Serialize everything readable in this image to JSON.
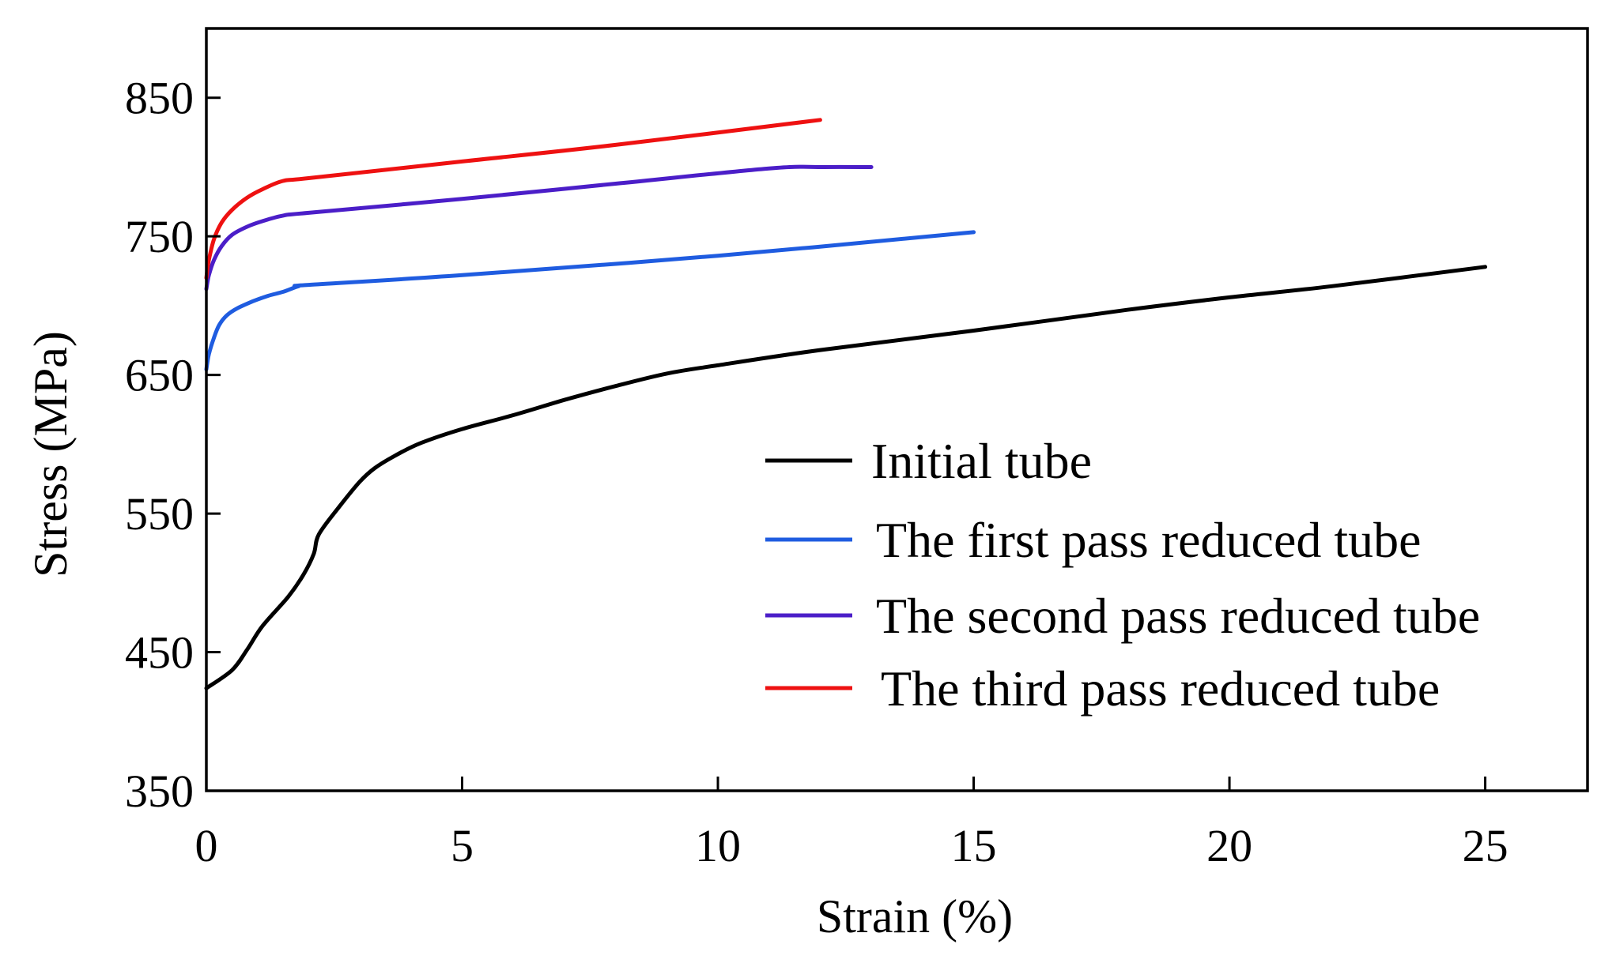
{
  "chart_data": {
    "type": "line",
    "title": "",
    "xlabel": "Strain (%)",
    "ylabel": "Stress (MPa)",
    "xlim": [
      0,
      27
    ],
    "ylim": [
      350,
      900
    ],
    "xticks": [
      0,
      5,
      10,
      15,
      20,
      25
    ],
    "yticks": [
      350,
      450,
      550,
      650,
      750,
      850
    ],
    "grid": false,
    "legend_position": "center-right",
    "series": [
      {
        "name": "Initial tube",
        "color": "#000000",
        "points": [
          [
            0,
            424
          ],
          [
            0.5,
            437
          ],
          [
            0.8,
            452
          ],
          [
            1.1,
            469
          ],
          [
            1.6,
            490
          ],
          [
            1.9,
            506
          ],
          [
            2.1,
            521
          ],
          [
            2.2,
            535
          ],
          [
            2.6,
            555
          ],
          [
            3.0,
            573
          ],
          [
            3.3,
            583
          ],
          [
            3.7,
            592
          ],
          [
            4.2,
            601
          ],
          [
            5.0,
            611
          ],
          [
            6.0,
            621
          ],
          [
            7.0,
            632
          ],
          [
            8.0,
            642
          ],
          [
            9.0,
            651
          ],
          [
            10.0,
            657
          ],
          [
            12.0,
            668
          ],
          [
            15.0,
            682
          ],
          [
            18.0,
            697
          ],
          [
            20.0,
            706
          ],
          [
            22.0,
            714
          ],
          [
            25.0,
            728
          ]
        ]
      },
      {
        "name": "The first pass reduced tube",
        "color": "#1f5ce0",
        "points": [
          [
            0,
            654
          ],
          [
            0.05,
            665
          ],
          [
            0.15,
            677
          ],
          [
            0.25,
            686
          ],
          [
            0.4,
            693
          ],
          [
            0.6,
            698
          ],
          [
            0.9,
            703
          ],
          [
            1.2,
            707
          ],
          [
            1.5,
            710
          ],
          [
            1.8,
            714
          ],
          [
            2.0,
            715
          ],
          [
            5.0,
            722
          ],
          [
            10.0,
            736
          ],
          [
            15.0,
            753
          ]
        ]
      },
      {
        "name": "The second pass reduced tube",
        "color": "#4b1ec8",
        "points": [
          [
            0,
            712
          ],
          [
            0.05,
            722
          ],
          [
            0.15,
            733
          ],
          [
            0.3,
            743
          ],
          [
            0.5,
            751
          ],
          [
            0.8,
            757
          ],
          [
            1.1,
            761
          ],
          [
            1.5,
            765
          ],
          [
            2.0,
            767
          ],
          [
            5.0,
            777
          ],
          [
            8.0,
            788
          ],
          [
            11.0,
            799
          ],
          [
            12.0,
            800
          ],
          [
            13.0,
            800
          ]
        ]
      },
      {
        "name": "The third pass reduced tube",
        "color": "#ee1111",
        "points": [
          [
            0,
            720
          ],
          [
            0.05,
            733
          ],
          [
            0.15,
            748
          ],
          [
            0.3,
            760
          ],
          [
            0.5,
            769
          ],
          [
            0.8,
            778
          ],
          [
            1.1,
            784
          ],
          [
            1.5,
            790
          ],
          [
            2.0,
            792
          ],
          [
            5.0,
            804
          ],
          [
            8.0,
            816
          ],
          [
            12.0,
            834
          ]
        ]
      }
    ]
  }
}
